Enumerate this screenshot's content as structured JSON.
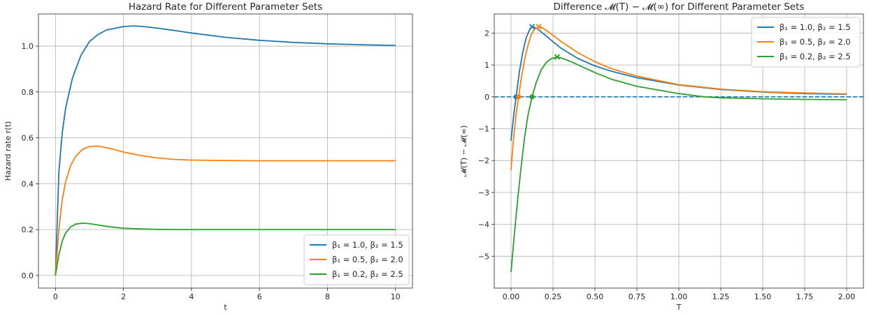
{
  "chart_data": [
    {
      "type": "line",
      "title": "Hazard Rate for Different Parameter Sets",
      "xlabel": "t",
      "ylabel": "Hazard rate r(t)",
      "xlim": [
        -0.5,
        10.5
      ],
      "ylim": [
        -0.055,
        1.14
      ],
      "xticks": [
        0,
        2,
        4,
        6,
        8,
        10
      ],
      "xtick_labels": [
        "0",
        "2",
        "4",
        "6",
        "8",
        "10"
      ],
      "yticks": [
        0.0,
        0.2,
        0.4,
        0.6,
        0.8,
        1.0
      ],
      "ytick_labels": [
        "0.0",
        "0.2",
        "0.4",
        "0.6",
        "0.8",
        "1.0"
      ],
      "grid": true,
      "legend_position": "lower-right",
      "series": [
        {
          "legend": "β₁ = 1.0, β₂ = 1.5",
          "color": "#1f77b4",
          "x": [
            0,
            0.1,
            0.2,
            0.3,
            0.5,
            0.75,
            1.0,
            1.25,
            1.5,
            2.0,
            2.3,
            2.6,
            3.0,
            3.5,
            4.0,
            5.0,
            6.0,
            7.0,
            8.0,
            9.0,
            10.0
          ],
          "y": [
            0.0,
            0.45,
            0.62,
            0.73,
            0.86,
            0.96,
            1.02,
            1.05,
            1.07,
            1.085,
            1.088,
            1.085,
            1.078,
            1.068,
            1.057,
            1.038,
            1.025,
            1.016,
            1.01,
            1.006,
            1.003
          ]
        },
        {
          "legend": "β₁ = 0.5, β₂ = 2.0",
          "color": "#ff7f0e",
          "x": [
            0,
            0.1,
            0.2,
            0.3,
            0.45,
            0.6,
            0.8,
            1.0,
            1.2,
            1.4,
            1.7,
            2.0,
            2.5,
            3.0,
            3.5,
            4.0,
            5.0,
            6.0,
            8.0,
            10.0
          ],
          "y": [
            0.0,
            0.2,
            0.33,
            0.41,
            0.48,
            0.52,
            0.55,
            0.562,
            0.564,
            0.56,
            0.55,
            0.538,
            0.523,
            0.512,
            0.506,
            0.503,
            0.501,
            0.5,
            0.5,
            0.5
          ]
        },
        {
          "legend": "β₁ = 0.2, β₂ = 2.5",
          "color": "#2ca02c",
          "x": [
            0,
            0.1,
            0.2,
            0.3,
            0.45,
            0.6,
            0.8,
            1.0,
            1.3,
            1.6,
            2.0,
            2.5,
            3.0,
            4.0,
            5.0,
            7.0,
            10.0
          ],
          "y": [
            0.0,
            0.09,
            0.15,
            0.185,
            0.212,
            0.224,
            0.228,
            0.226,
            0.219,
            0.212,
            0.206,
            0.203,
            0.201,
            0.2,
            0.2,
            0.2,
            0.2
          ]
        }
      ]
    },
    {
      "type": "line",
      "title": "Difference 𝓜(T) − 𝓜(∞) for Different Parameter Sets",
      "xlabel": "T",
      "ylabel": "𝓜(T) − 𝓜(∞)",
      "xlim": [
        -0.1,
        2.1
      ],
      "ylim": [
        -6.0,
        2.6
      ],
      "xticks": [
        0.0,
        0.25,
        0.5,
        0.75,
        1.0,
        1.25,
        1.5,
        1.75,
        2.0
      ],
      "xtick_labels": [
        "0.00",
        "0.25",
        "0.50",
        "0.75",
        "1.00",
        "1.25",
        "1.50",
        "1.75",
        "2.00"
      ],
      "yticks": [
        -5,
        -4,
        -3,
        -2,
        -1,
        0,
        1,
        2
      ],
      "ytick_labels": [
        "−5",
        "−4",
        "−3",
        "−2",
        "−1",
        "0",
        "1",
        "2"
      ],
      "grid": true,
      "legend_position": "upper-right",
      "reference_line": {
        "y": 0,
        "color": "#1f77b4",
        "style": "dashed"
      },
      "series": [
        {
          "legend": "β₁ = 1.0,  β₂ = 1.5",
          "color": "#1f77b4",
          "x": [
            0.0,
            0.01,
            0.02,
            0.03,
            0.05,
            0.07,
            0.09,
            0.11,
            0.125,
            0.14,
            0.16,
            0.2,
            0.25,
            0.3,
            0.4,
            0.5,
            0.6,
            0.75,
            1.0,
            1.25,
            1.5,
            1.75,
            2.0
          ],
          "y": [
            -1.38,
            -0.85,
            -0.4,
            0.0,
            0.8,
            1.4,
            1.85,
            2.1,
            2.2,
            2.18,
            2.12,
            1.95,
            1.73,
            1.52,
            1.2,
            0.97,
            0.8,
            0.6,
            0.37,
            0.23,
            0.15,
            0.1,
            0.08
          ]
        },
        {
          "legend": "β₁ = 0.5,  β₂ = 2.0",
          "color": "#ff7f0e",
          "x": [
            0.0,
            0.01,
            0.02,
            0.03,
            0.045,
            0.06,
            0.08,
            0.1,
            0.12,
            0.14,
            0.165,
            0.18,
            0.2,
            0.25,
            0.3,
            0.4,
            0.5,
            0.6,
            0.75,
            1.0,
            1.25,
            1.5,
            1.75,
            2.0
          ],
          "y": [
            -2.3,
            -1.6,
            -1.05,
            -0.55,
            0.0,
            0.55,
            1.15,
            1.6,
            1.95,
            2.12,
            2.2,
            2.18,
            2.12,
            1.93,
            1.73,
            1.38,
            1.1,
            0.88,
            0.65,
            0.38,
            0.24,
            0.16,
            0.12,
            0.09
          ]
        },
        {
          "legend": "β₁ = 0.2,  β₂ = 2.5",
          "color": "#2ca02c",
          "x": [
            0.0,
            0.02,
            0.04,
            0.06,
            0.08,
            0.1,
            0.125,
            0.15,
            0.18,
            0.21,
            0.24,
            0.275,
            0.3,
            0.35,
            0.4,
            0.5,
            0.6,
            0.75,
            1.0,
            1.15,
            1.25,
            1.5,
            1.75,
            2.0
          ],
          "y": [
            -5.5,
            -4.3,
            -3.2,
            -2.2,
            -1.3,
            -0.6,
            0.0,
            0.45,
            0.85,
            1.08,
            1.2,
            1.25,
            1.22,
            1.12,
            1.0,
            0.76,
            0.55,
            0.33,
            0.1,
            0.0,
            -0.03,
            -0.06,
            -0.08,
            -0.09
          ]
        }
      ],
      "markers": [
        {
          "series": 0,
          "kind": "o",
          "x": 0.03,
          "y": 0.0
        },
        {
          "series": 1,
          "kind": "o",
          "x": 0.045,
          "y": 0.0
        },
        {
          "series": 2,
          "kind": "o",
          "x": 0.125,
          "y": 0.0
        },
        {
          "series": 0,
          "kind": "x",
          "x": 0.125,
          "y": 2.2
        },
        {
          "series": 1,
          "kind": "x",
          "x": 0.165,
          "y": 2.2
        },
        {
          "series": 2,
          "kind": "x",
          "x": 0.275,
          "y": 1.25
        }
      ]
    }
  ]
}
